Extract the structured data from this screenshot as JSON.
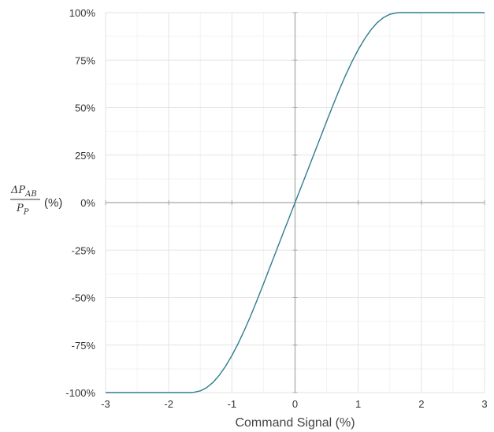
{
  "chart_data": {
    "type": "line",
    "title": "",
    "xlabel": "Command Signal (%)",
    "ylabel": {
      "numerator_symbol": "ΔP",
      "numerator_subscript": "AB",
      "denominator_symbol": "P",
      "denominator_subscript": "P",
      "unit": "(%)"
    },
    "xlim": [
      -3,
      3
    ],
    "ylim": [
      -100,
      100
    ],
    "x_ticks": [
      -3,
      -2,
      -1,
      0,
      1,
      2,
      3
    ],
    "x_tick_labels": [
      "-3",
      "-2",
      "-1",
      "0",
      "1",
      "2",
      "3"
    ],
    "y_ticks": [
      100,
      75,
      50,
      25,
      0,
      -25,
      -50,
      -75,
      -100
    ],
    "y_tick_labels": [
      "100%",
      "75%",
      "50%",
      "25%",
      "0%",
      "-25%",
      "-50%",
      "-75%",
      "-100%"
    ],
    "grid": true,
    "line_color": "#2e7d8f",
    "series": [
      {
        "x": [
          -3,
          -2.5,
          -2,
          -1.7,
          -1.65,
          -1.6,
          -1.5,
          -1.4,
          -1.3,
          -1.2,
          -1.1,
          -1.0,
          -0.9,
          -0.8,
          -0.7,
          -0.6,
          -0.5,
          -0.4,
          -0.3,
          -0.2,
          -0.1,
          0,
          0.1,
          0.2,
          0.3,
          0.4,
          0.5,
          0.6,
          0.7,
          0.8,
          0.9,
          1.0,
          1.1,
          1.2,
          1.3,
          1.4,
          1.5,
          1.6,
          1.65,
          1.7,
          2,
          2.5,
          3
        ],
        "y": [
          -100,
          -100,
          -100,
          -100,
          -100,
          -99.8,
          -99.1,
          -97.4,
          -94.7,
          -90.9,
          -86.1,
          -80.5,
          -74.1,
          -67.0,
          -59.4,
          -51.2,
          -42.8,
          -34.2,
          -25.6,
          -17.0,
          -8.5,
          0,
          8.5,
          17.0,
          25.6,
          34.2,
          42.8,
          51.2,
          59.4,
          67.0,
          74.1,
          80.5,
          86.1,
          90.9,
          94.7,
          97.4,
          99.1,
          99.8,
          100,
          100,
          100,
          100,
          100
        ]
      }
    ]
  }
}
